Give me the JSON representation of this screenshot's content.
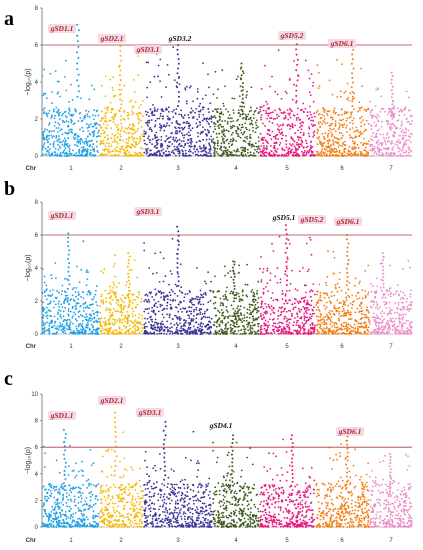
{
  "chart_data": [
    {
      "type": "scatter",
      "panel": "a",
      "ylabel": "−log₁₀(p)",
      "xlabel": "Chr",
      "ylim": [
        0,
        8
      ],
      "yticks": [
        0,
        2,
        4,
        6,
        8
      ],
      "threshold": 6,
      "threshold_color": "#b03a3a",
      "chromosomes": [
        "1",
        "2",
        "3",
        "4",
        "5",
        "6",
        "7"
      ],
      "chr_colors": [
        "#1ea0e6",
        "#f5b800",
        "#3d3596",
        "#3e5a1e",
        "#e8177f",
        "#f57d10",
        "#ea8ec8"
      ],
      "chr_peaks": [
        7.1,
        6.2,
        6.0,
        5.0,
        6.6,
        6.0,
        4.5
      ],
      "annotations": [
        {
          "label": "gSD1.1",
          "chr": 1,
          "color": "#a52a2a",
          "highlight": true
        },
        {
          "label": "gSD2.1",
          "chr": 2,
          "color": "#a52a2a",
          "highlight": true
        },
        {
          "label": "gSD3.1",
          "chr": 3,
          "color": "#a52a2a",
          "highlight": true
        },
        {
          "label": "gSD3.2",
          "chr": 3,
          "color": "#111111",
          "highlight": false
        },
        {
          "label": "gSD5.2",
          "chr": 5,
          "color": "#a52a2a",
          "highlight": true
        },
        {
          "label": "gSD6.1",
          "chr": 6,
          "color": "#a52a2a",
          "highlight": true
        }
      ]
    },
    {
      "type": "scatter",
      "panel": "b",
      "ylabel": "−log₁₀(p)",
      "xlabel": "Chr",
      "ylim": [
        0,
        8
      ],
      "yticks": [
        0,
        2,
        4,
        6,
        8
      ],
      "threshold": 6,
      "threshold_color": "#b03a3a",
      "chromosomes": [
        "1",
        "2",
        "3",
        "4",
        "5",
        "6",
        "7"
      ],
      "chr_colors": [
        "#1ea0e6",
        "#f5b800",
        "#3d3596",
        "#3e5a1e",
        "#e8177f",
        "#f57d10",
        "#ea8ec8"
      ],
      "chr_peaks": [
        6.1,
        4.9,
        6.5,
        4.4,
        6.6,
        6.0,
        4.9
      ],
      "annotations": [
        {
          "label": "gSD1.1",
          "chr": 1,
          "color": "#a52a2a",
          "highlight": true
        },
        {
          "label": "gSD3.1",
          "chr": 3,
          "color": "#a52a2a",
          "highlight": true
        },
        {
          "label": "gSD5.1",
          "chr": 5,
          "color": "#111111",
          "highlight": false
        },
        {
          "label": "gSD5.2",
          "chr": 5,
          "color": "#a52a2a",
          "highlight": true
        },
        {
          "label": "gSD6.1",
          "chr": 6,
          "color": "#a52a2a",
          "highlight": true
        }
      ]
    },
    {
      "type": "scatter",
      "panel": "c",
      "ylabel": "−log₁₀(p)",
      "xlabel": "Chr",
      "ylim": [
        0,
        10
      ],
      "yticks": [
        0,
        2,
        4,
        6,
        8,
        10
      ],
      "threshold": 6,
      "threshold_color": "#b03a3a",
      "chromosomes": [
        "1",
        "2",
        "3",
        "4",
        "5",
        "6",
        "7"
      ],
      "chr_colors": [
        "#1ea0e6",
        "#f5b800",
        "#3d3596",
        "#3e5a1e",
        "#e8177f",
        "#f57d10",
        "#ea8ec8"
      ],
      "chr_peaks": [
        7.3,
        8.6,
        7.9,
        6.9,
        6.9,
        7.1,
        5.5
      ],
      "annotations": [
        {
          "label": "gSD1.1",
          "chr": 1,
          "color": "#a52a2a",
          "highlight": true
        },
        {
          "label": "gSD2.1",
          "chr": 2,
          "color": "#a52a2a",
          "highlight": true
        },
        {
          "label": "gSD3.1",
          "chr": 3,
          "color": "#a52a2a",
          "highlight": true
        },
        {
          "label": "gSD4.1",
          "chr": 4,
          "color": "#111111",
          "highlight": false
        },
        {
          "label": "gSD6.1",
          "chr": 6,
          "color": "#a52a2a",
          "highlight": true
        }
      ]
    }
  ]
}
